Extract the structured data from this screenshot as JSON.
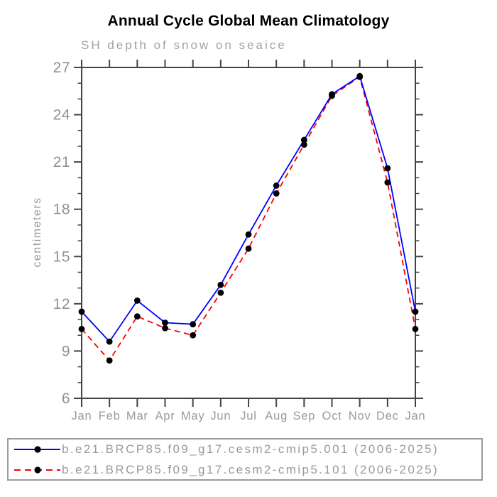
{
  "title": "Annual Cycle Global Mean Climatology",
  "chart_data": {
    "type": "line",
    "title": "Annual Cycle Global Mean Climatology",
    "subtitle": "SH depth of snow on seaice",
    "ylabel": "centimeters",
    "categories": [
      "Jan",
      "Feb",
      "Mar",
      "Apr",
      "May",
      "Jun",
      "Jul",
      "Aug",
      "Sep",
      "Oct",
      "Nov",
      "Dec",
      "Jan"
    ],
    "ylim": [
      6,
      27
    ],
    "yticks_major": [
      6,
      9,
      12,
      15,
      18,
      21,
      24,
      27
    ],
    "ytick_minor_step": 1,
    "grid": false,
    "legend_position": "bottom-outside",
    "series": [
      {
        "name": "b.e21.BRCP85.f09_g17.cesm2-cmip5.001 (2006-2025)",
        "color": "#0000ff",
        "line_style": "solid",
        "marker": "filled-circle",
        "marker_color": "#000000",
        "values": [
          11.5,
          9.6,
          12.2,
          10.8,
          10.7,
          13.2,
          16.4,
          19.5,
          22.4,
          25.3,
          26.45,
          20.6,
          11.5
        ]
      },
      {
        "name": "b.e21.BRCP85.f09_g17.cesm2-cmip5.101 (2006-2025)",
        "color": "#fb0000",
        "line_style": "dashed",
        "marker": "filled-circle",
        "marker_color": "#000000",
        "values": [
          10.4,
          8.4,
          11.2,
          10.45,
          10.0,
          12.7,
          15.5,
          19.0,
          22.1,
          25.2,
          26.4,
          19.7,
          10.4
        ]
      }
    ]
  },
  "colors": {
    "background": "#ffffff",
    "axis": "#444444",
    "tick_label": "#919191",
    "subtitle_text": "#a2a2a2",
    "title_text": "#000000",
    "legend_border": "#9b9b9b",
    "marker": "#000000"
  }
}
